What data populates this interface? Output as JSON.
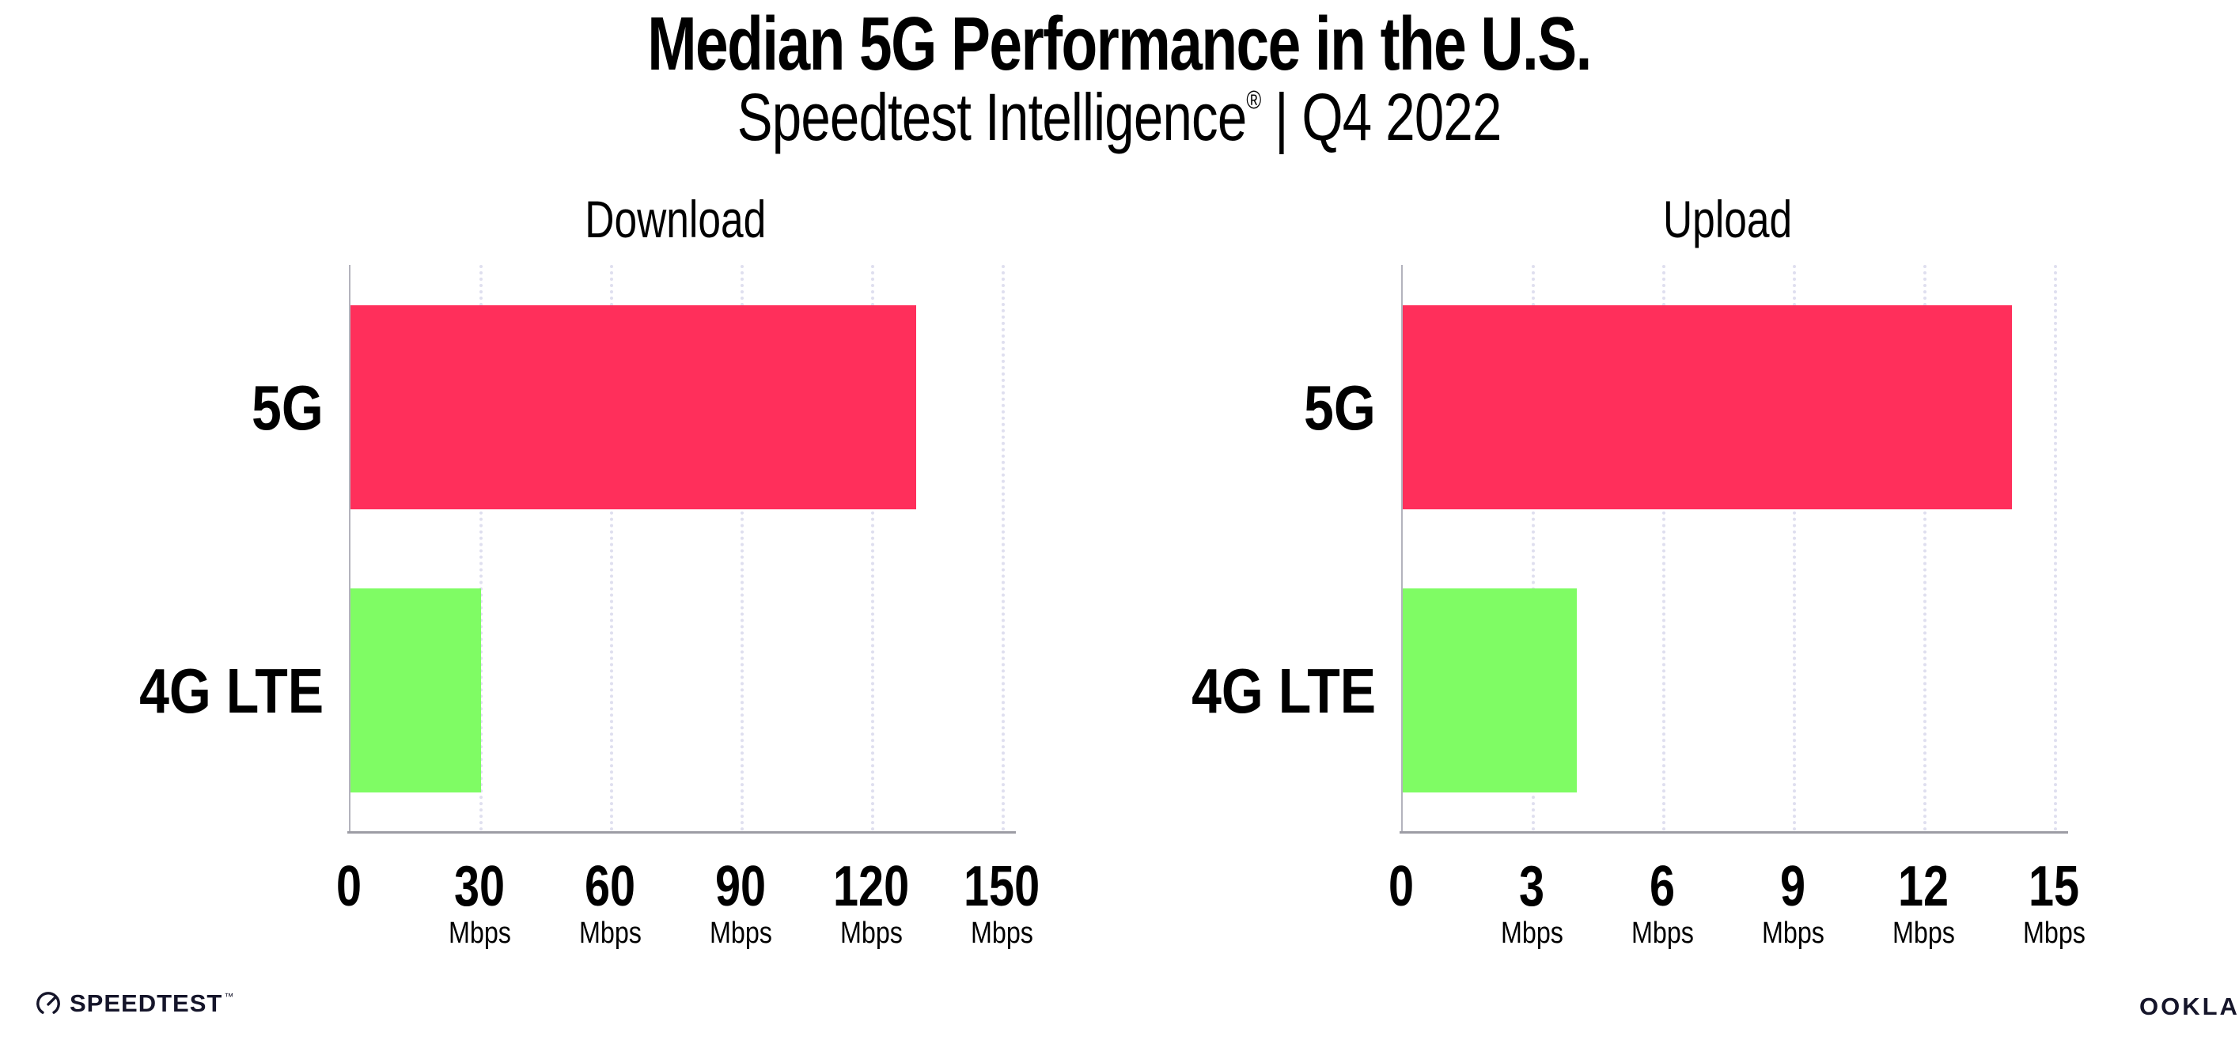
{
  "header": {
    "title": "Median 5G Performance in the U.S.",
    "product": "Speedtest Intelligence",
    "reg": "®",
    "divider": "|",
    "period": "Q4 2022"
  },
  "chart_data": {
    "type": "bar",
    "orientation": "horizontal",
    "title": "Median 5G Performance in the U.S.",
    "subtitle": "Speedtest Intelligence® | Q4 2022",
    "legend": "none",
    "grid": "vertical-dotted-gridlines",
    "unit": "Mbps",
    "bar_colors": [
      "#FF2F5B",
      "#7FFC64"
    ],
    "panels": [
      {
        "title": "Download",
        "categories": [
          "5G",
          "4G LTE"
        ],
        "values": [
          130,
          30
        ],
        "xlim": [
          0,
          150
        ],
        "tick_labels": [
          "0",
          "30",
          "60",
          "90",
          "120",
          "150"
        ],
        "unit": "Mbps"
      },
      {
        "title": "Upload",
        "categories": [
          "5G",
          "4G LTE"
        ],
        "values": [
          14,
          4
        ],
        "xlim": [
          0,
          15
        ],
        "tick_labels": [
          "0",
          "3",
          "6",
          "9",
          "12",
          "15"
        ],
        "unit": "Mbps"
      }
    ]
  },
  "colors": {
    "bar_5g": "#FF2F5B",
    "bar_4g_lte": "#7FFC64",
    "axis_line": "#9DDA5",
    "gridline": "#DFDFEF",
    "logo_ink": "#15152A"
  },
  "footer": {
    "speedtest_wordmark": "SPEEDTEST",
    "speedtest_tm": "™",
    "ookla_wordmark": "OOKLA",
    "ookla_reg": "®"
  }
}
